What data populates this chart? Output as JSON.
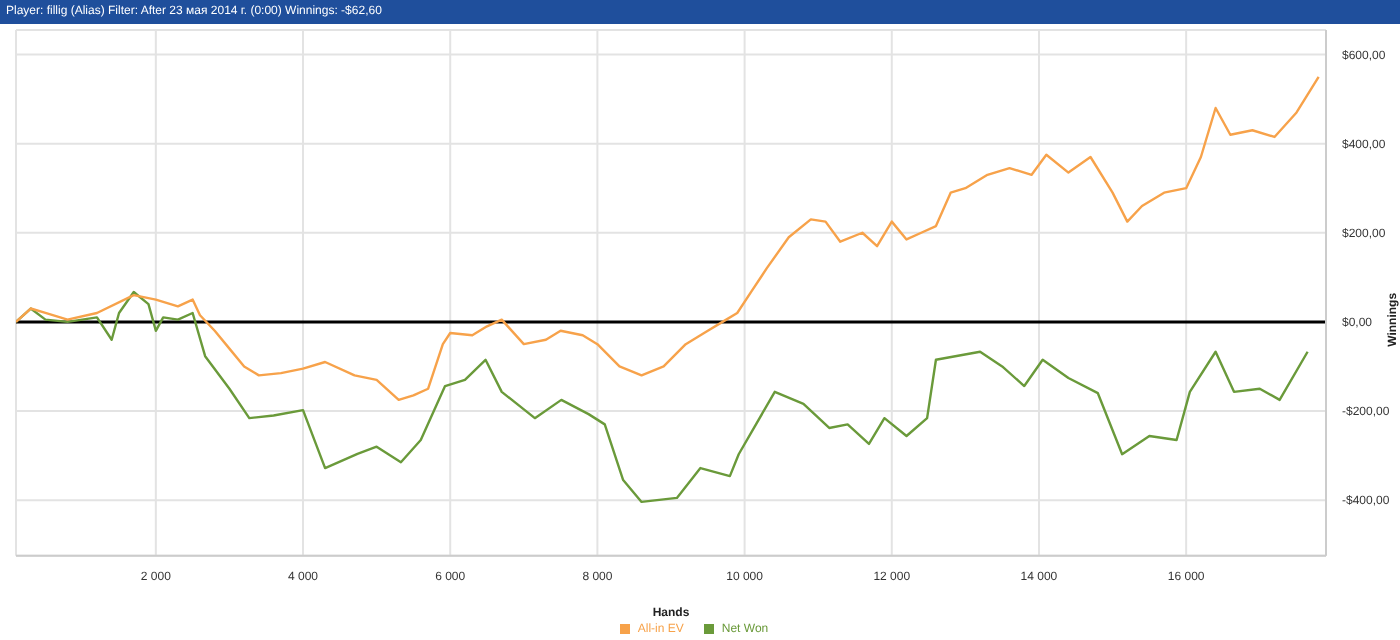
{
  "chart_data": {
    "type": "line",
    "title": "Player: fillig (Alias) Filter: After 23 мая 2014 г. (0:00) Winnings: -$62,60",
    "xlabel": "Hands",
    "ylabel": "Winnings",
    "series": [
      {
        "name": "Net Won",
        "color": "#6a9a3a",
        "x": [
          100,
          300,
          500,
          800,
          1200,
          1400,
          1500,
          1700,
          1900,
          2000,
          2100,
          2300,
          2500,
          2670,
          3000,
          3270,
          3600,
          4000,
          4300,
          4740,
          5000,
          5330,
          5600,
          5930,
          6200,
          6480,
          6700,
          7150,
          7510,
          7880,
          8100,
          8350,
          8600,
          9080,
          9400,
          9800,
          9920,
          10410,
          10800,
          11150,
          11400,
          11690,
          11900,
          12200,
          12480,
          12600,
          13200,
          13500,
          13800,
          14050,
          14400,
          14800,
          15130,
          15500,
          15870,
          16050,
          16400,
          16650,
          17000,
          17270,
          17650
        ],
        "values": [
          0,
          30,
          5,
          0,
          10,
          -40,
          20,
          67,
          40,
          -20,
          10,
          5,
          20,
          -77,
          -150,
          -216,
          -210,
          -198,
          -328,
          -296,
          -280,
          -315,
          -265,
          -144,
          -130,
          -85,
          -157,
          -216,
          -175,
          -207,
          -230,
          -355,
          -404,
          -395,
          -328,
          -346,
          -297,
          -157,
          -184,
          -238,
          -230,
          -274,
          -216,
          -256,
          -216,
          -85,
          -67,
          -100,
          -144,
          -85,
          -126,
          -160,
          -297,
          -256,
          -265,
          -157,
          -67,
          -157,
          -150,
          -175,
          -67
        ]
      },
      {
        "name": "All-in EV",
        "color": "#f7a24a",
        "x": [
          100,
          300,
          500,
          800,
          1200,
          1700,
          2000,
          2300,
          2500,
          2600,
          2800,
          3000,
          3200,
          3400,
          3700,
          4000,
          4300,
          4700,
          5000,
          5300,
          5500,
          5700,
          5900,
          6000,
          6300,
          6500,
          6700,
          7000,
          7300,
          7500,
          7800,
          8000,
          8300,
          8600,
          8900,
          9200,
          9500,
          9700,
          9900,
          10100,
          10300,
          10600,
          10900,
          11100,
          11300,
          11600,
          11800,
          12000,
          12200,
          12400,
          12600,
          12800,
          13000,
          13300,
          13600,
          13900,
          14100,
          14400,
          14700,
          15000,
          15200,
          15400,
          15700,
          16000,
          16200,
          16400,
          16600,
          16900,
          17200,
          17500,
          17800
        ],
        "values": [
          0,
          30,
          20,
          5,
          20,
          60,
          50,
          35,
          50,
          15,
          -20,
          -60,
          -100,
          -120,
          -115,
          -105,
          -90,
          -120,
          -130,
          -175,
          -165,
          -150,
          -50,
          -25,
          -30,
          -10,
          5,
          -50,
          -40,
          -20,
          -30,
          -50,
          -100,
          -120,
          -100,
          -50,
          -20,
          0,
          20,
          70,
          120,
          190,
          230,
          225,
          180,
          200,
          170,
          225,
          185,
          200,
          215,
          290,
          300,
          330,
          345,
          330,
          375,
          335,
          370,
          290,
          225,
          260,
          290,
          300,
          370,
          480,
          420,
          430,
          415,
          470,
          550
        ]
      }
    ],
    "xlim": [
      100,
      17900
    ],
    "xticks": [
      {
        "value": 2000,
        "label": "2 000"
      },
      {
        "value": 4000,
        "label": "4 000"
      },
      {
        "value": 6000,
        "label": "6 000"
      },
      {
        "value": 8000,
        "label": "8 000"
      },
      {
        "value": 10000,
        "label": "10 000"
      },
      {
        "value": 12000,
        "label": "12 000"
      },
      {
        "value": 14000,
        "label": "14 000"
      },
      {
        "value": 16000,
        "label": "16 000"
      }
    ],
    "ylim": [
      -525,
      655
    ],
    "yticks": [
      {
        "value": -400,
        "label": "-$400,00"
      },
      {
        "value": -200,
        "label": "-$200,00"
      },
      {
        "value": 0,
        "label": "$0,00"
      },
      {
        "value": 200,
        "label": "$200,00"
      },
      {
        "value": 400,
        "label": "$400,00"
      },
      {
        "value": 600,
        "label": "$600,00"
      }
    ],
    "grid": true,
    "legend": "bottom",
    "marker": "none",
    "ref_lines": [
      {
        "axis": "y",
        "value": 0,
        "color": "#000000"
      }
    ]
  }
}
